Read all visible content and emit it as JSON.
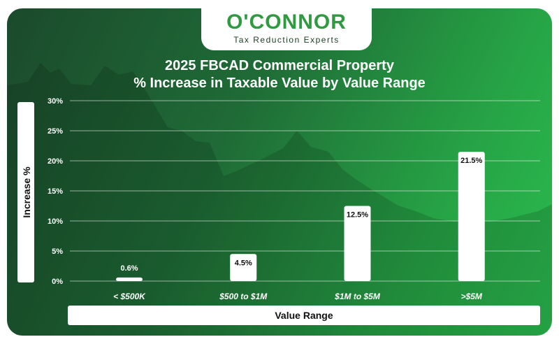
{
  "logo": {
    "name": "O'CONNOR",
    "tagline": "Tax Reduction Experts"
  },
  "colors": {
    "accent_green": "#2f9a3f",
    "background_dark": "#1b4a2c",
    "background_light": "#2bbd4f",
    "bar": "#ffffff"
  },
  "chart_data": {
    "type": "bar",
    "title_line1": "2025 FBCAD Commercial Property",
    "title_line2": "% Increase in Taxable Value by Value Range",
    "xlabel": "Value Range",
    "ylabel": "Increase %",
    "categories": [
      "< $500K",
      "$500 to $1M",
      "$1M to $5M",
      ">$5M"
    ],
    "values": [
      0.6,
      4.5,
      12.5,
      21.5
    ],
    "value_labels": [
      "0.6%",
      "4.5%",
      "12.5%",
      "21.5%"
    ],
    "yticks": [
      "0%",
      "5%",
      "10%",
      "15%",
      "20%",
      "25%",
      "30%"
    ],
    "ylim": [
      0,
      30
    ],
    "grid": true
  }
}
